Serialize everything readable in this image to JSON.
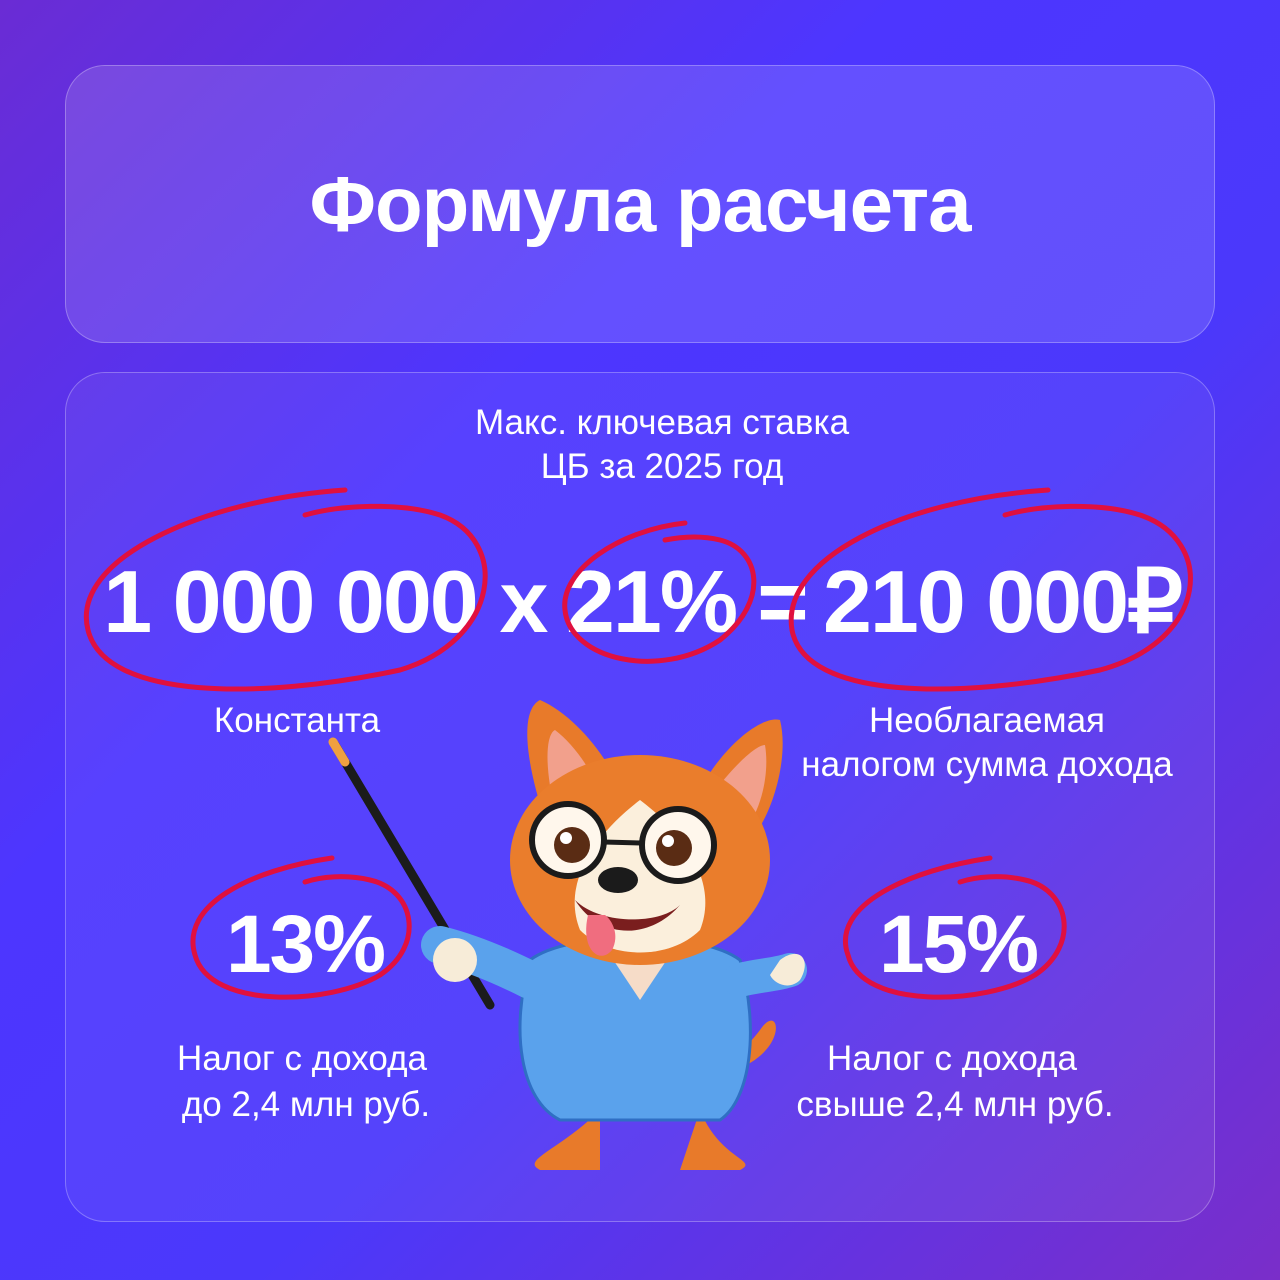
{
  "title": "Формула расчета",
  "formula": {
    "caption_line1": "Макс. ключевая ставка",
    "caption_line2": "ЦБ за 2025 год",
    "base": "1 000 000",
    "multiply": "x",
    "rate": "21%",
    "equals": "=",
    "result": "210 000₽",
    "base_label": "Константа",
    "result_label_line1": "Необлагаемая",
    "result_label_line2": "налогом сумма дохода"
  },
  "rates": [
    {
      "value": "13%",
      "label_line1": "Налог с дохода",
      "label_line2": "до 2,4 млн руб."
    },
    {
      "value": "15%",
      "label_line1": "Налог с дохода",
      "label_line2": "свыше 2,4 млн руб."
    }
  ],
  "colors": {
    "highlight_circle": "#e0103f",
    "background": "#4d36ff"
  },
  "illustration": "corgi-teacher-with-pointer"
}
